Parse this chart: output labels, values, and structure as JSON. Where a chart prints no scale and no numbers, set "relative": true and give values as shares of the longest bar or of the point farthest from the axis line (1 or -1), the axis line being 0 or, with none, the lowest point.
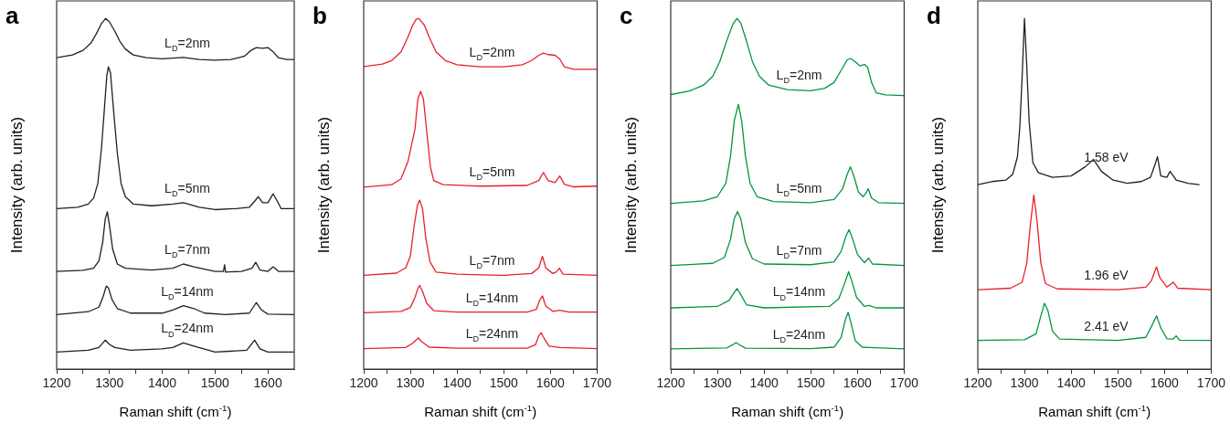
{
  "chart_data": [
    {
      "type": "line",
      "title": "a",
      "xlabel": "Raman shift (cm$^{-1}$)",
      "ylabel": "Intensity (arb. units)",
      "relative": true,
      "tick_labels": "x",
      "marker": "none",
      "xlim": [
        1200,
        1650
      ],
      "xticks": [
        1200,
        {
          "value": 1250,
          "label": null
        },
        1300,
        {
          "value": 1350,
          "label": null
        },
        1400,
        {
          "value": 1450,
          "label": null
        },
        1500,
        {
          "value": 1550,
          "label": null
        },
        1600
      ],
      "series": [
        {
          "name": "L$_{D}$=2nm",
          "color": "#231f20",
          "x": [
            1200,
            1230,
            1250,
            1265,
            1275,
            1285,
            1293,
            1300,
            1310,
            1320,
            1330,
            1345,
            1370,
            1400,
            1440,
            1470,
            1500,
            1530,
            1555,
            1568,
            1578,
            1590,
            1600,
            1610,
            1620,
            1635,
            1650
          ],
          "values": [
            0.888,
            0.896,
            0.909,
            0.93,
            0.956,
            0.986,
            1.0,
            0.99,
            0.964,
            0.934,
            0.913,
            0.896,
            0.888,
            0.885,
            0.889,
            0.883,
            0.881,
            0.883,
            0.892,
            0.909,
            0.917,
            0.915,
            0.917,
            0.905,
            0.888,
            0.883,
            0.883
          ]
        },
        {
          "name": "L$_{D}$=5nm",
          "color": "#231f20",
          "x": [
            1200,
            1240,
            1260,
            1270,
            1278,
            1285,
            1290,
            1295,
            1298,
            1302,
            1308,
            1315,
            1322,
            1330,
            1345,
            1380,
            1420,
            1440,
            1470,
            1500,
            1540,
            1565,
            1575,
            1582,
            1590,
            1600,
            1610,
            1618,
            1625,
            1650
          ],
          "values": [
            0.458,
            0.462,
            0.471,
            0.488,
            0.53,
            0.632,
            0.734,
            0.837,
            0.862,
            0.845,
            0.734,
            0.615,
            0.53,
            0.492,
            0.471,
            0.466,
            0.471,
            0.475,
            0.462,
            0.455,
            0.458,
            0.462,
            0.479,
            0.492,
            0.475,
            0.475,
            0.5,
            0.479,
            0.458,
            0.458
          ]
        },
        {
          "name": "L$_{D}$=7nm",
          "color": "#231f20",
          "x": [
            1200,
            1250,
            1270,
            1280,
            1287,
            1292,
            1296,
            1300,
            1306,
            1315,
            1330,
            1380,
            1420,
            1440,
            1460,
            1500,
            1516,
            1518,
            1520,
            1550,
            1570,
            1577,
            1585,
            1600,
            1610,
            1620,
            1650
          ],
          "values": [
            0.279,
            0.282,
            0.288,
            0.309,
            0.36,
            0.428,
            0.449,
            0.411,
            0.343,
            0.3,
            0.288,
            0.283,
            0.288,
            0.3,
            0.292,
            0.279,
            0.279,
            0.298,
            0.277,
            0.279,
            0.288,
            0.305,
            0.283,
            0.279,
            0.292,
            0.279,
            0.279
          ]
        },
        {
          "name": "L$_{D}$=14nm",
          "color": "#231f20",
          "x": [
            1200,
            1260,
            1280,
            1288,
            1294,
            1298,
            1305,
            1315,
            1340,
            1400,
            1420,
            1440,
            1460,
            1480,
            1520,
            1565,
            1578,
            1588,
            1600,
            1650
          ],
          "values": [
            0.156,
            0.164,
            0.177,
            0.207,
            0.237,
            0.232,
            0.198,
            0.173,
            0.16,
            0.16,
            0.169,
            0.181,
            0.173,
            0.16,
            0.156,
            0.16,
            0.19,
            0.169,
            0.157,
            0.156
          ]
        },
        {
          "name": "L$_{D}$=24nm",
          "color": "#231f20",
          "x": [
            1200,
            1260,
            1280,
            1292,
            1300,
            1310,
            1340,
            1400,
            1420,
            1440,
            1460,
            1500,
            1560,
            1575,
            1585,
            1600,
            1650
          ],
          "values": [
            0.049,
            0.054,
            0.062,
            0.083,
            0.071,
            0.062,
            0.054,
            0.058,
            0.062,
            0.075,
            0.066,
            0.049,
            0.054,
            0.083,
            0.058,
            0.049,
            0.049
          ]
        }
      ]
    },
    {
      "type": "line",
      "title": "b",
      "xlabel": "Raman shift (cm$^{-1}$)",
      "ylabel": "Intensity (arb. units)",
      "relative": true,
      "tick_labels": "x",
      "marker": "none",
      "xlim": [
        1200,
        1700
      ],
      "xticks": [
        1200,
        {
          "value": 1250,
          "label": null
        },
        1300,
        {
          "value": 1350,
          "label": null
        },
        1400,
        {
          "value": 1450,
          "label": null
        },
        1500,
        {
          "value": 1550,
          "label": null
        },
        1600,
        {
          "value": 1650,
          "label": null
        },
        1700
      ],
      "series": [
        {
          "name": "L$_{D}$=2nm",
          "color": "#e8202a",
          "x": [
            1200,
            1240,
            1260,
            1280,
            1295,
            1305,
            1312,
            1318,
            1330,
            1340,
            1355,
            1375,
            1400,
            1450,
            1500,
            1540,
            1560,
            1575,
            1585,
            1595,
            1610,
            1620,
            1630,
            1650,
            1700
          ],
          "values": [
            0.863,
            0.87,
            0.88,
            0.905,
            0.948,
            0.981,
            0.997,
            1.0,
            0.981,
            0.948,
            0.905,
            0.88,
            0.868,
            0.862,
            0.862,
            0.868,
            0.88,
            0.895,
            0.901,
            0.897,
            0.895,
            0.884,
            0.862,
            0.855,
            0.855
          ]
        },
        {
          "name": "L$_{D}$=5nm",
          "color": "#e8202a",
          "x": [
            1200,
            1260,
            1280,
            1295,
            1310,
            1316,
            1322,
            1328,
            1335,
            1343,
            1350,
            1370,
            1450,
            1550,
            1575,
            1585,
            1595,
            1610,
            1620,
            1630,
            1650,
            1700
          ],
          "values": [
            0.519,
            0.526,
            0.543,
            0.593,
            0.686,
            0.77,
            0.792,
            0.77,
            0.678,
            0.576,
            0.538,
            0.526,
            0.522,
            0.524,
            0.538,
            0.561,
            0.538,
            0.532,
            0.551,
            0.527,
            0.52,
            0.522
          ]
        },
        {
          "name": "L$_{D}$=7nm",
          "color": "#e8202a",
          "x": [
            1200,
            1270,
            1290,
            1300,
            1308,
            1315,
            1320,
            1326,
            1333,
            1342,
            1355,
            1400,
            1500,
            1560,
            1575,
            1583,
            1590,
            1605,
            1612,
            1619,
            1627,
            1700
          ],
          "values": [
            0.268,
            0.274,
            0.289,
            0.323,
            0.408,
            0.467,
            0.482,
            0.458,
            0.374,
            0.306,
            0.277,
            0.271,
            0.268,
            0.273,
            0.289,
            0.322,
            0.289,
            0.273,
            0.277,
            0.288,
            0.271,
            0.268
          ]
        },
        {
          "name": "L$_{D}$=14nm",
          "color": "#e8202a",
          "x": [
            1200,
            1280,
            1300,
            1310,
            1316,
            1320,
            1326,
            1335,
            1350,
            1400,
            1550,
            1570,
            1577,
            1583,
            1590,
            1605,
            1620,
            1640,
            1700
          ],
          "values": [
            0.161,
            0.165,
            0.176,
            0.205,
            0.23,
            0.239,
            0.222,
            0.188,
            0.167,
            0.163,
            0.163,
            0.171,
            0.197,
            0.209,
            0.18,
            0.165,
            0.168,
            0.163,
            0.163
          ]
        },
        {
          "name": "L$_{D}$=24nm",
          "color": "#e8202a",
          "x": [
            1200,
            1290,
            1305,
            1317,
            1325,
            1340,
            1400,
            1550,
            1568,
            1575,
            1580,
            1587,
            1597,
            1620,
            1700
          ],
          "values": [
            0.059,
            0.062,
            0.074,
            0.089,
            0.078,
            0.063,
            0.06,
            0.06,
            0.07,
            0.095,
            0.104,
            0.087,
            0.066,
            0.062,
            0.059
          ]
        }
      ]
    },
    {
      "type": "line",
      "title": "c",
      "xlabel": "Raman shift (cm$^{-1}$)",
      "ylabel": "Intensity (arb. units)",
      "relative": true,
      "tick_labels": "x",
      "marker": "none",
      "xlim": [
        1200,
        1700
      ],
      "xticks": [
        1200,
        {
          "value": 1250,
          "label": null
        },
        1300,
        {
          "value": 1350,
          "label": null
        },
        1400,
        {
          "value": 1450,
          "label": null
        },
        1500,
        {
          "value": 1550,
          "label": null
        },
        1600,
        {
          "value": 1650,
          "label": null
        },
        1700
      ],
      "series": [
        {
          "name": "L$_{D}$=2nm",
          "color": "#009640",
          "x": [
            1200,
            1240,
            1270,
            1290,
            1305,
            1320,
            1333,
            1342,
            1350,
            1360,
            1375,
            1390,
            1410,
            1450,
            1500,
            1530,
            1550,
            1565,
            1578,
            1585,
            1595,
            1605,
            1615,
            1622,
            1630,
            1640,
            1660,
            1700
          ],
          "values": [
            0.783,
            0.793,
            0.81,
            0.835,
            0.877,
            0.937,
            0.983,
            1.0,
            0.987,
            0.945,
            0.877,
            0.835,
            0.81,
            0.797,
            0.794,
            0.801,
            0.818,
            0.852,
            0.882,
            0.886,
            0.877,
            0.865,
            0.869,
            0.86,
            0.818,
            0.788,
            0.782,
            0.78
          ]
        },
        {
          "name": "L$_{D}$=5nm",
          "color": "#009640",
          "x": [
            1200,
            1270,
            1300,
            1318,
            1328,
            1336,
            1345,
            1352,
            1360,
            1370,
            1385,
            1420,
            1500,
            1550,
            1568,
            1578,
            1585,
            1592,
            1602,
            1612,
            1618,
            1623,
            1630,
            1645,
            1700
          ],
          "values": [
            0.473,
            0.48,
            0.492,
            0.53,
            0.607,
            0.708,
            0.755,
            0.708,
            0.607,
            0.53,
            0.492,
            0.478,
            0.475,
            0.484,
            0.514,
            0.556,
            0.577,
            0.552,
            0.505,
            0.492,
            0.501,
            0.515,
            0.488,
            0.475,
            0.473
          ]
        },
        {
          "name": "L$_{D}$=7nm",
          "color": "#009640",
          "x": [
            1200,
            1290,
            1315,
            1328,
            1336,
            1343,
            1350,
            1360,
            1375,
            1400,
            1500,
            1550,
            1565,
            1575,
            1582,
            1590,
            1600,
            1615,
            1624,
            1632,
            1700
          ],
          "values": [
            0.296,
            0.302,
            0.319,
            0.37,
            0.429,
            0.45,
            0.429,
            0.361,
            0.315,
            0.3,
            0.298,
            0.306,
            0.336,
            0.378,
            0.398,
            0.37,
            0.327,
            0.304,
            0.317,
            0.3,
            0.296
          ]
        },
        {
          "name": "L$_{D}$=14nm",
          "color": "#009640",
          "x": [
            1200,
            1300,
            1325,
            1335,
            1342,
            1350,
            1362,
            1400,
            1540,
            1560,
            1572,
            1581,
            1588,
            1598,
            1615,
            1625,
            1640,
            1700
          ],
          "values": [
            0.175,
            0.179,
            0.196,
            0.217,
            0.23,
            0.213,
            0.184,
            0.175,
            0.179,
            0.201,
            0.243,
            0.278,
            0.251,
            0.205,
            0.179,
            0.182,
            0.175,
            0.175
          ]
        },
        {
          "name": "L$_{D}$=24nm",
          "color": "#009640",
          "x": [
            1200,
            1320,
            1332,
            1340,
            1348,
            1360,
            1500,
            1550,
            1565,
            1574,
            1580,
            1586,
            1595,
            1610,
            1625,
            1700
          ],
          "values": [
            0.058,
            0.061,
            0.069,
            0.076,
            0.069,
            0.06,
            0.059,
            0.063,
            0.091,
            0.141,
            0.162,
            0.133,
            0.082,
            0.063,
            0.062,
            0.058
          ]
        }
      ]
    },
    {
      "type": "line",
      "title": "d",
      "xlabel": "Raman shift (cm$^{-1}$)",
      "ylabel": "Intensity (arb. units)",
      "relative": true,
      "tick_labels": "x",
      "marker": "none",
      "xlim": [
        1200,
        1700
      ],
      "xticks": [
        1200,
        {
          "value": 1250,
          "label": null
        },
        1300,
        {
          "value": 1350,
          "label": null
        },
        1400,
        {
          "value": 1450,
          "label": null
        },
        1500,
        {
          "value": 1550,
          "label": null
        },
        1600,
        {
          "value": 1650,
          "label": null
        },
        1700
      ],
      "series": [
        {
          "name": "1.58 eV",
          "color": "#231f20",
          "x": [
            1200,
            1230,
            1260,
            1275,
            1285,
            1290,
            1295,
            1300,
            1304,
            1310,
            1318,
            1330,
            1360,
            1400,
            1430,
            1448,
            1465,
            1490,
            1520,
            1550,
            1570,
            1580,
            1585,
            1592,
            1605,
            1612,
            1625,
            1650,
            1674
          ],
          "values": [
            0.526,
            0.535,
            0.539,
            0.556,
            0.606,
            0.69,
            0.833,
            1.0,
            0.892,
            0.707,
            0.589,
            0.56,
            0.547,
            0.551,
            0.577,
            0.598,
            0.564,
            0.539,
            0.53,
            0.535,
            0.547,
            0.585,
            0.606,
            0.551,
            0.547,
            0.564,
            0.539,
            0.53,
            0.526
          ]
        },
        {
          "name": "1.96 eV",
          "color": "#e8202a",
          "x": [
            1200,
            1270,
            1295,
            1305,
            1312,
            1320,
            1327,
            1335,
            1345,
            1370,
            1500,
            1560,
            1572,
            1583,
            1590,
            1605,
            1619,
            1628,
            1700
          ],
          "values": [
            0.227,
            0.231,
            0.248,
            0.303,
            0.404,
            0.497,
            0.421,
            0.303,
            0.244,
            0.229,
            0.227,
            0.234,
            0.253,
            0.292,
            0.261,
            0.234,
            0.248,
            0.231,
            0.227
          ]
        },
        {
          "name": "2.41 eV",
          "color": "#009640",
          "x": [
            1200,
            1300,
            1325,
            1335,
            1343,
            1350,
            1360,
            1375,
            1500,
            1560,
            1572,
            1583,
            1592,
            1605,
            1618,
            1625,
            1632,
            1700
          ],
          "values": [
            0.082,
            0.084,
            0.101,
            0.152,
            0.188,
            0.168,
            0.109,
            0.086,
            0.082,
            0.091,
            0.122,
            0.152,
            0.118,
            0.087,
            0.086,
            0.095,
            0.083,
            0.082
          ]
        }
      ]
    }
  ]
}
